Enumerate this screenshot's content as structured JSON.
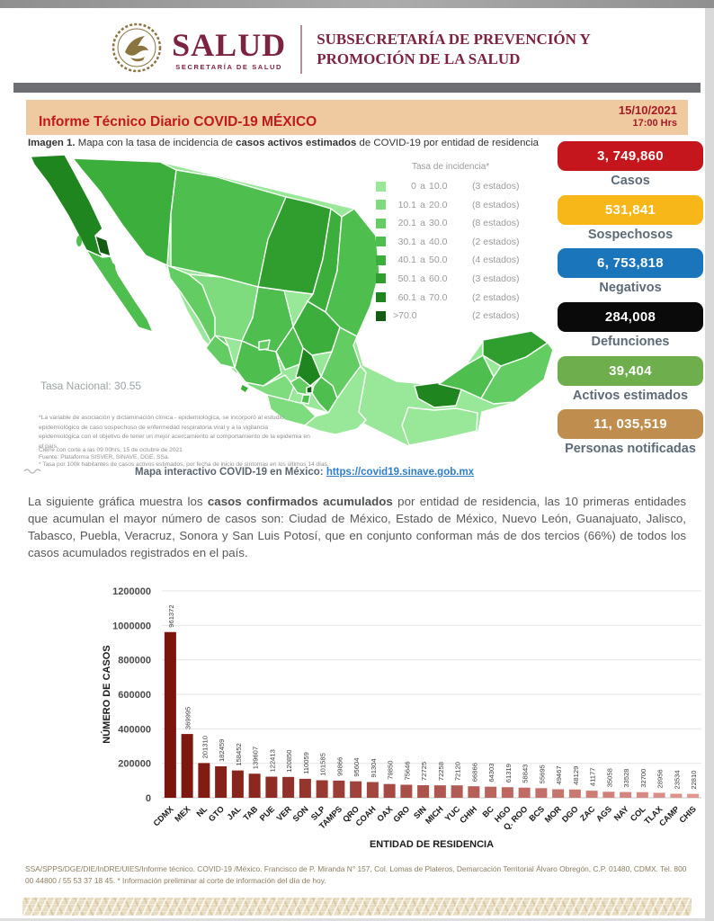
{
  "header": {
    "logo_title": "SALUD",
    "logo_subtitle": "SECRETARÍA DE SALUD",
    "subsecretaria_line1": "SUBSECRETARÍA DE PREVENCIÓN Y",
    "subsecretaria_line2": "PROMOCIÓN DE LA SALUD"
  },
  "report": {
    "title": "Informe Técnico Diario COVID-19 MÉXICO",
    "date": "15/10/2021",
    "time": "17:00 Hrs"
  },
  "image_caption": {
    "prefix": "Imagen 1.",
    "text_before": " Mapa con la tasa de incidencia de ",
    "bold": "casos activos estimados",
    "text_after": " de COVID-19 por entidad de residencia"
  },
  "map": {
    "legend_title": "Tasa de incidencia*",
    "legend": [
      {
        "lo": "0",
        "hi": "10.0",
        "count": "(3 estados)",
        "color": "#99e899"
      },
      {
        "lo": "10.1",
        "hi": "20.0",
        "count": "(8 estados)",
        "color": "#7edc7e"
      },
      {
        "lo": "20.1",
        "hi": "30.0",
        "count": "(8 estados)",
        "color": "#63cd63"
      },
      {
        "lo": "30.1",
        "hi": "40.0",
        "count": "(2 estados)",
        "color": "#4ebf4e"
      },
      {
        "lo": "40.1",
        "hi": "50.0",
        "count": "(4 estados)",
        "color": "#3cae3c"
      },
      {
        "lo": "50.1",
        "hi": "60.0",
        "count": "(3 estados)",
        "color": "#2f9e2f"
      },
      {
        "lo": "60.1",
        "hi": "70.0",
        "count": "(2 estados)",
        "color": "#1f851f"
      },
      {
        "lo": ">70.0",
        "hi": "",
        "count": "(2 estados)",
        "color": "#145c14"
      }
    ],
    "tasa_nacional": "Tasa Nacional: 30.55",
    "footnote": "*La variable de asociación y dictaminación clínica - epidemiológica, se incorporó al estudio epidemiológico de caso sospechoso de enfermedad respiratoria viral y a la vigilancia epidemiológica con el objetivo de tener un mejor acercamiento al comportamiento de la epidemia en el país.",
    "cierre": "Cierre con corte a las 09:00hrs, 15 de octubre de 2021",
    "fuente": "Fuente: Plataforma SISVER, SINAVE, DGE, SSa.",
    "tasa_note": "* Tasa por 100k habitantes de casos activos estimados, por fecha de inicio de síntomas en los últimos 14 días.",
    "interactive_label": "Mapa interactivo COVID-19 en México:",
    "interactive_url": "https://covid19.sinave.gob.mx"
  },
  "stats": [
    {
      "value": "3, 749,860",
      "label": "Casos",
      "color": "#c4161c"
    },
    {
      "value": "531,841",
      "label": "Sospechosos",
      "color": "#f7b718"
    },
    {
      "value": "6, 753,818",
      "label": "Negativos",
      "color": "#1b75bb"
    },
    {
      "value": "284,008",
      "label": "Defunciones",
      "color": "#0a0a0a"
    },
    {
      "value": "39,404",
      "label": "Activos estimados",
      "color": "#6fae4c"
    },
    {
      "value": "11, 035,519",
      "label": "Personas notificadas",
      "color": "#bf8e4f"
    }
  ],
  "paragraph": {
    "before_bold": "La siguiente gráfica muestra los ",
    "bold": "casos confirmados acumulados",
    "after_bold": " por entidad de residencia, las 10 primeras entidades que acumulan el mayor número de casos son: Ciudad de México, Estado de México, Nuevo León, Guanajuato, Jalisco, Tabasco, Puebla, Veracruz, Sonora y San Luis Potosí, que en conjunto conforman más de dos tercios (66%) de todos los casos acumulados registrados en el país."
  },
  "chart_data": {
    "type": "bar",
    "categories": [
      "CDMX",
      "MEX",
      "NL",
      "GTO",
      "JAL",
      "TAB",
      "PUE",
      "VER",
      "SON",
      "SLP",
      "TAMPS",
      "QRO",
      "COAH",
      "OAX",
      "GRO",
      "SIN",
      "MICH",
      "YUC",
      "CHIH",
      "BC",
      "HGO",
      "Q. ROO",
      "BCS",
      "MOR",
      "DGO",
      "ZAC",
      "AGS",
      "NAY",
      "COL",
      "TLAX",
      "CAMP",
      "CHIS"
    ],
    "values": [
      961372,
      369995,
      201310,
      182459,
      158452,
      139607,
      122413,
      120850,
      110059,
      101585,
      99866,
      95604,
      91304,
      79850,
      75646,
      72725,
      72258,
      72120,
      66866,
      64303,
      61319,
      58843,
      55695,
      49467,
      48129,
      41177,
      35058,
      33528,
      32700,
      28956,
      23534,
      22810
    ],
    "title": "",
    "xlabel": "ENTIDAD DE RESIDENCIA",
    "ylabel": "NÚMERO DE CASOS",
    "ylim": [
      0,
      1200000
    ],
    "yticks": [
      0,
      200000,
      400000,
      600000,
      800000,
      1000000,
      1200000
    ],
    "grid": "horizontal",
    "bar_color_start": "#7a140c",
    "bar_color_end": "#e19690"
  },
  "footer": {
    "line": "SSA/SPPS/DGE/DIE/InDRE/UIES/Informe técnico. COVID-19 /México. Francisco de P. Miranda N° 157, Col. Lomas de Plateros, Demarcación Territorial Álvaro Obregón, C.P. 01480, CDMX. Tel. 800 00 44800 / 55 53 37 18 45. * Información preliminar al corte de información del día de hoy."
  }
}
